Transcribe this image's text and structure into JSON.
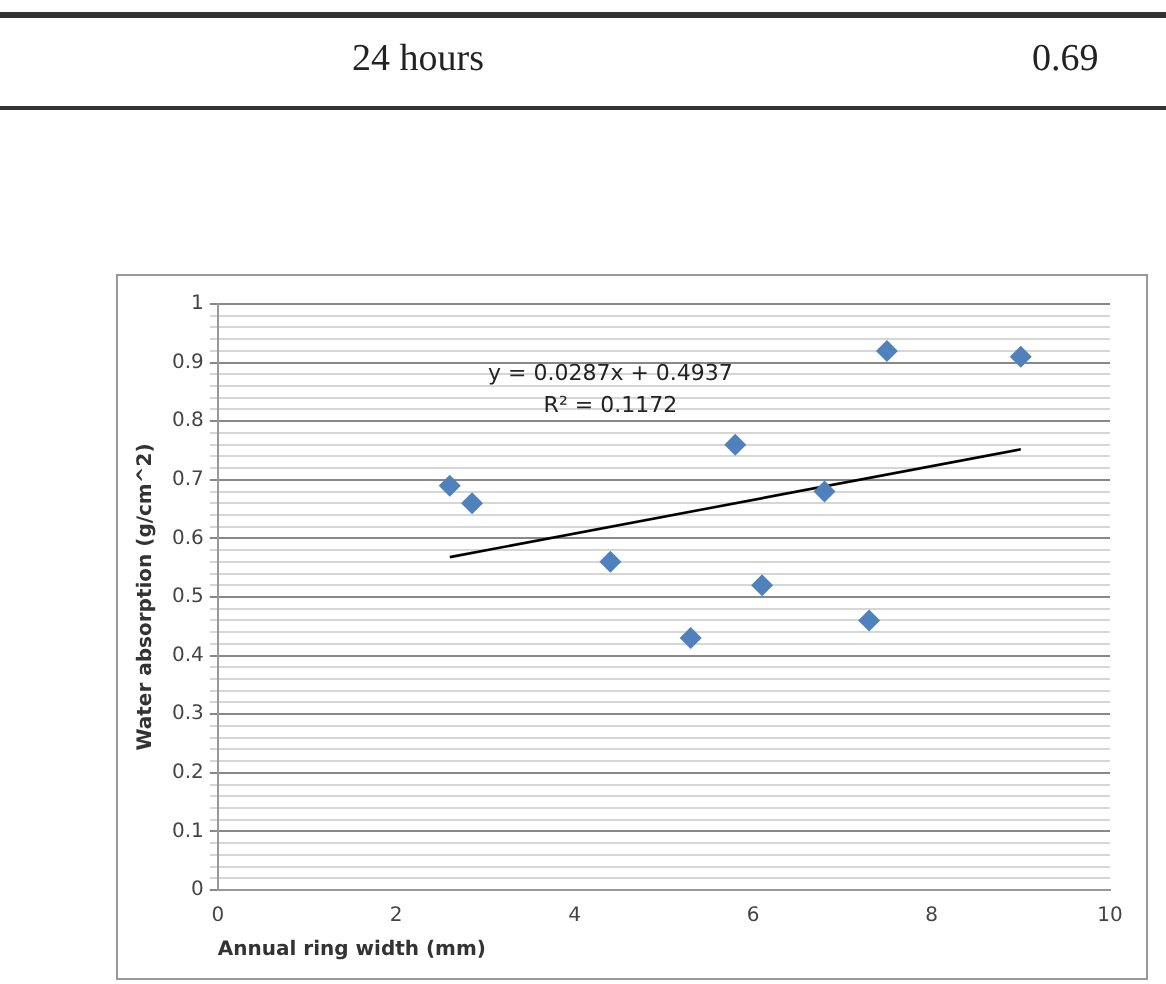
{
  "chart_data": {
    "type": "scatter",
    "xlabel": "Annual ring width (mm)",
    "ylabel": "Water absorption (g/cm^2)",
    "annotations": [
      "24  hours",
      "0.69",
      "y = 0.0287x + 0.4937",
      "R² = 0.1172"
    ],
    "series": [
      {
        "color": "#4f81bd",
        "marker": "diamond",
        "x": [
          2.6,
          2.85,
          4.4,
          5.3,
          5.8,
          6.1,
          6.8,
          7.3,
          7.5,
          9.0
        ],
        "values": [
          0.69,
          0.66,
          0.56,
          0.43,
          0.76,
          0.52,
          0.68,
          0.46,
          0.92,
          0.91
        ]
      },
      {
        "type": "line",
        "color": "#000000",
        "marker": "none",
        "x": [
          2.6,
          9.0
        ],
        "values": [
          0.568,
          0.752
        ]
      }
    ],
    "xlim": [
      0,
      10
    ],
    "xticks": [
      0,
      2,
      4,
      6,
      8,
      10
    ],
    "ylim": [
      0,
      1
    ],
    "yticks": [
      0,
      {
        "value": 0.02,
        "label": null
      },
      {
        "value": 0.04,
        "label": null
      },
      {
        "value": 0.06,
        "label": null
      },
      {
        "value": 0.08,
        "label": null
      },
      0.1,
      {
        "value": 0.12,
        "label": null
      },
      {
        "value": 0.14,
        "label": null
      },
      {
        "value": 0.16,
        "label": null
      },
      {
        "value": 0.18,
        "label": null
      },
      0.2,
      {
        "value": 0.22,
        "label": null
      },
      {
        "value": 0.24,
        "label": null
      },
      {
        "value": 0.26,
        "label": null
      },
      {
        "value": 0.28,
        "label": null
      },
      0.3,
      {
        "value": 0.32,
        "label": null
      },
      {
        "value": 0.34,
        "label": null
      },
      {
        "value": 0.36,
        "label": null
      },
      {
        "value": 0.38,
        "label": null
      },
      0.4,
      {
        "value": 0.42,
        "label": null
      },
      {
        "value": 0.44,
        "label": null
      },
      {
        "value": 0.46,
        "label": null
      },
      {
        "value": 0.48,
        "label": null
      },
      0.5,
      {
        "value": 0.52,
        "label": null
      },
      {
        "value": 0.54,
        "label": null
      },
      {
        "value": 0.56,
        "label": null
      },
      {
        "value": 0.58,
        "label": null
      },
      0.6,
      {
        "value": 0.62,
        "label": null
      },
      {
        "value": 0.64,
        "label": null
      },
      {
        "value": 0.66,
        "label": null
      },
      {
        "value": 0.68,
        "label": null
      },
      0.7,
      {
        "value": 0.72,
        "label": null
      },
      {
        "value": 0.74,
        "label": null
      },
      {
        "value": 0.76,
        "label": null
      },
      {
        "value": 0.78,
        "label": null
      },
      0.8,
      {
        "value": 0.82,
        "label": null
      },
      {
        "value": 0.84,
        "label": null
      },
      {
        "value": 0.86,
        "label": null
      },
      {
        "value": 0.88,
        "label": null
      },
      0.9,
      {
        "value": 0.92,
        "label": null
      },
      {
        "value": 0.94,
        "label": null
      },
      {
        "value": 0.96,
        "label": null
      },
      {
        "value": 0.98,
        "label": null
      },
      1
    ],
    "grid": "y",
    "legend": false
  }
}
